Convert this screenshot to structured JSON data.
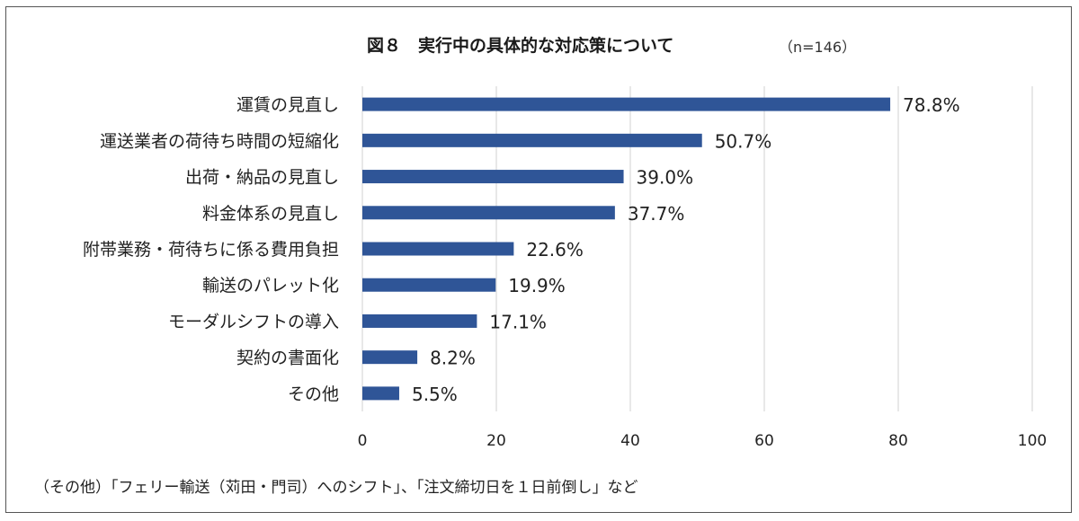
{
  "chart_data": {
    "type": "bar",
    "orientation": "horizontal",
    "title": "図８　実行中の具体的な対応策について",
    "subtitle": "（n=146）",
    "categories": [
      "運賃の見直し",
      "運送業者の荷待ち時間の短縮化",
      "出荷・納品の見直し",
      "料金体系の見直し",
      "附帯業務・荷待ちに係る費用負担",
      "輸送のパレット化",
      "モーダルシフトの導入",
      "契約の書面化",
      "その他"
    ],
    "values": [
      78.8,
      50.7,
      39.0,
      37.7,
      22.6,
      19.9,
      17.1,
      8.2,
      5.5
    ],
    "value_labels": [
      "78.8%",
      "50.7%",
      "39.0%",
      "37.7%",
      "22.6%",
      "19.9%",
      "17.1%",
      "8.2%",
      "5.5%"
    ],
    "xlim": [
      0,
      100
    ],
    "xticks": [
      0,
      20,
      40,
      60,
      80,
      100
    ],
    "grid": true,
    "legend": "none",
    "bar_color": "#2f5597"
  },
  "note": "（その他）「フェリー輸送（苅田・門司）へのシフト」、「注文締切日を１日前倒し」など"
}
